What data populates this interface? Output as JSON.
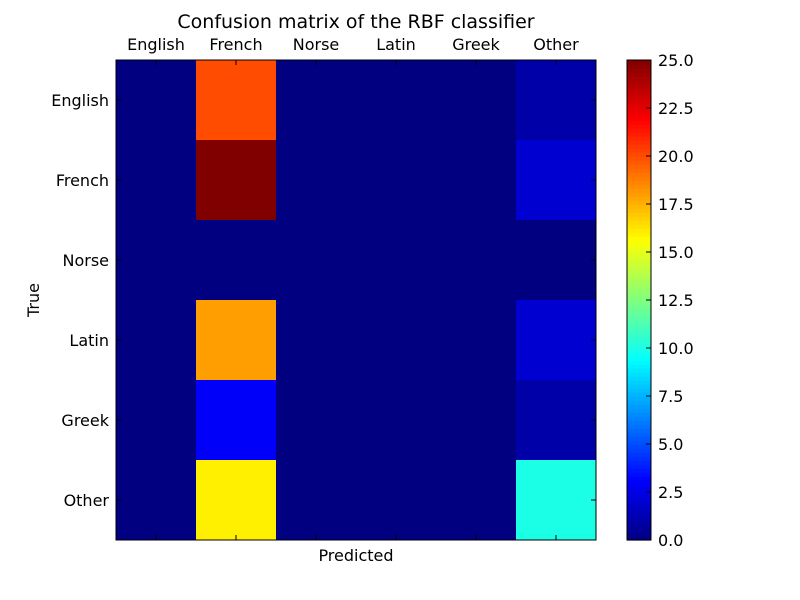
{
  "chart_data": {
    "type": "heatmap",
    "title": "Confusion matrix of the RBF classifier",
    "xlabel": "Predicted",
    "ylabel": "True",
    "x_categories": [
      "English",
      "French",
      "Norse",
      "Latin",
      "Greek",
      "Other"
    ],
    "y_categories": [
      "English",
      "French",
      "Norse",
      "Latin",
      "Greek",
      "Other"
    ],
    "values": [
      [
        0,
        20,
        0,
        0,
        0,
        1
      ],
      [
        0,
        25,
        0,
        0,
        0,
        2
      ],
      [
        0,
        0,
        0,
        0,
        0,
        0
      ],
      [
        0,
        18,
        0,
        0,
        0,
        2
      ],
      [
        0,
        3,
        0,
        0,
        0,
        1
      ],
      [
        0,
        16,
        0,
        0,
        0,
        10
      ]
    ],
    "colorbar": {
      "min": 0,
      "max": 25,
      "ticks": [
        "0.0",
        "2.5",
        "5.0",
        "7.5",
        "10.0",
        "12.5",
        "15.0",
        "17.5",
        "20.0",
        "22.5",
        "25.0"
      ]
    },
    "colormap": "jet",
    "x_tick_position": "top",
    "grid": false
  }
}
